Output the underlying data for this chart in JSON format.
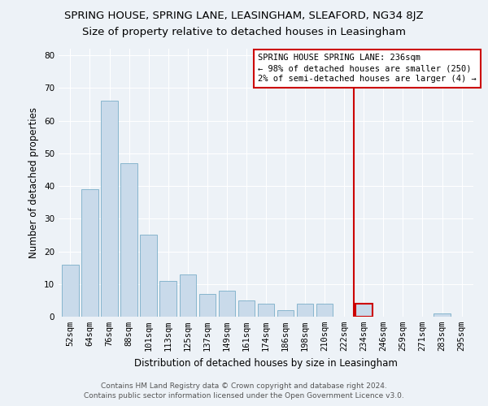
{
  "title": "SPRING HOUSE, SPRING LANE, LEASINGHAM, SLEAFORD, NG34 8JZ",
  "subtitle": "Size of property relative to detached houses in Leasingham",
  "xlabel": "Distribution of detached houses by size in Leasingham",
  "ylabel": "Number of detached properties",
  "footer_line1": "Contains HM Land Registry data © Crown copyright and database right 2024.",
  "footer_line2": "Contains public sector information licensed under the Open Government Licence v3.0.",
  "bar_labels": [
    "52sqm",
    "64sqm",
    "76sqm",
    "88sqm",
    "101sqm",
    "113sqm",
    "125sqm",
    "137sqm",
    "149sqm",
    "161sqm",
    "174sqm",
    "186sqm",
    "198sqm",
    "210sqm",
    "222sqm",
    "234sqm",
    "246sqm",
    "259sqm",
    "271sqm",
    "283sqm",
    "295sqm"
  ],
  "bar_values": [
    16,
    39,
    66,
    47,
    25,
    11,
    13,
    7,
    8,
    5,
    4,
    2,
    4,
    4,
    0,
    4,
    0,
    0,
    0,
    1,
    0
  ],
  "bar_color": "#c9daea",
  "bar_edge_color": "#7aaec8",
  "annotation_line_color": "#cc0000",
  "annotation_text_line1": "SPRING HOUSE SPRING LANE: 236sqm",
  "annotation_text_line2": "← 98% of detached houses are smaller (250)",
  "annotation_text_line3": "2% of semi-detached houses are larger (4) →",
  "annotation_box_color": "#cc0000",
  "ylim": [
    0,
    82
  ],
  "yticks": [
    0,
    10,
    20,
    30,
    40,
    50,
    60,
    70,
    80
  ],
  "background_color": "#edf2f7",
  "grid_color": "#ffffff",
  "title_fontsize": 9.5,
  "subtitle_fontsize": 9.5,
  "axis_label_fontsize": 8.5,
  "tick_fontsize": 7.5,
  "annotation_fontsize": 7.5,
  "footer_fontsize": 6.5
}
